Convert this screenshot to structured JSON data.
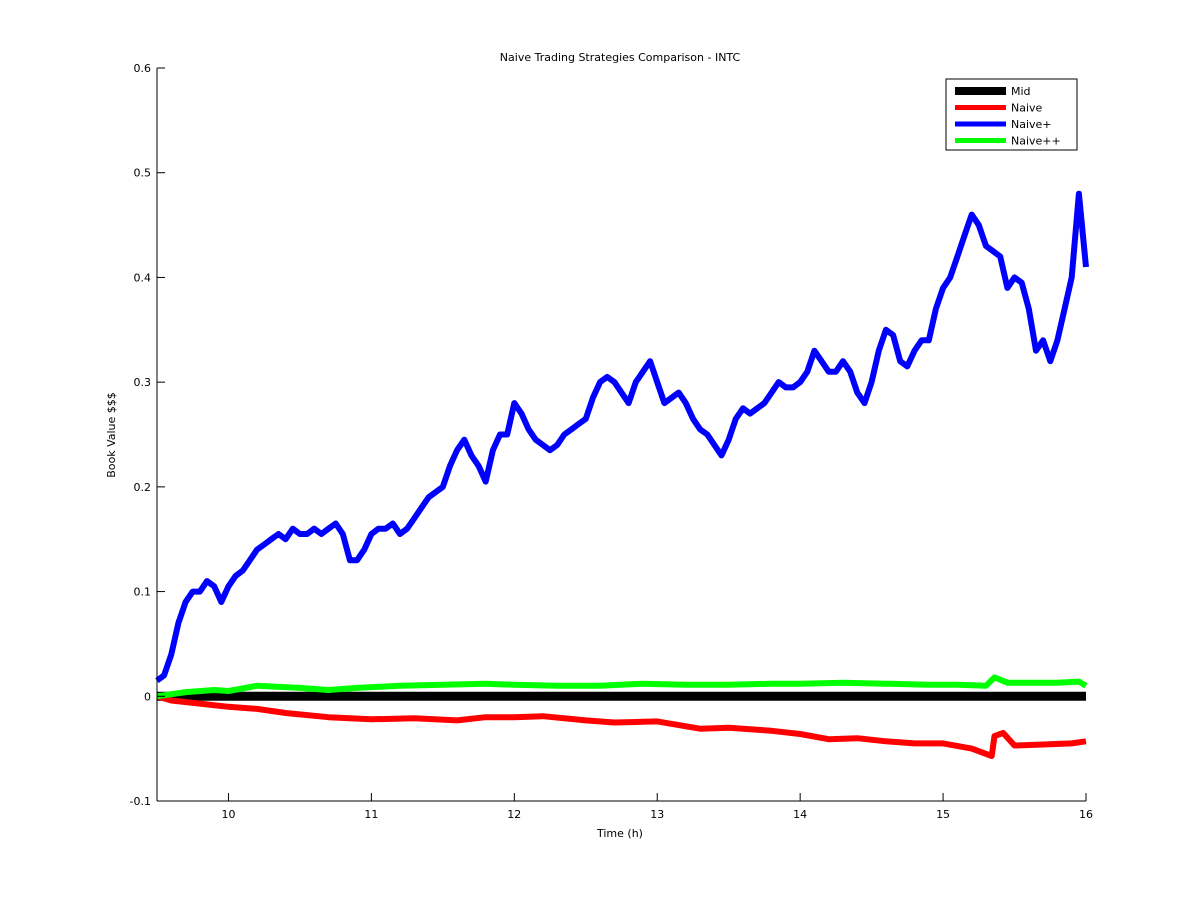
{
  "chart_data": {
    "type": "line",
    "title": "Naive Trading Strategies Comparison - INTC",
    "xlabel": "Time (h)",
    "ylabel": "Book Value $$$",
    "xlim": [
      9.5,
      16
    ],
    "ylim": [
      -0.1,
      0.6
    ],
    "xticks": [
      10,
      11,
      12,
      13,
      14,
      15,
      16
    ],
    "yticks": [
      -0.1,
      0,
      0.1,
      0.2,
      0.3,
      0.4,
      0.5,
      0.6
    ],
    "ytick_labels": [
      "-0.1",
      "0",
      "0.1",
      "0.2",
      "0.3",
      "0.4",
      "0.5",
      "0.6"
    ],
    "grid": false,
    "legend_position": "top-right",
    "series": [
      {
        "name": "Mid",
        "color": "#000000",
        "x": [
          9.5,
          10.0,
          11.0,
          12.0,
          13.0,
          14.0,
          15.0,
          16.0
        ],
        "y": [
          0.0,
          0.0,
          0.0,
          0.0,
          0.0,
          0.0,
          0.0,
          0.0
        ]
      },
      {
        "name": "Naive",
        "color": "#ff0000",
        "x": [
          9.5,
          9.6,
          9.8,
          10.0,
          10.2,
          10.4,
          10.7,
          11.0,
          11.3,
          11.6,
          11.8,
          12.0,
          12.2,
          12.5,
          12.7,
          13.0,
          13.3,
          13.5,
          13.8,
          14.0,
          14.2,
          14.4,
          14.6,
          14.8,
          15.0,
          15.2,
          15.34,
          15.36,
          15.42,
          15.5,
          15.7,
          15.9,
          16.0
        ],
        "y": [
          0.0,
          -0.004,
          -0.007,
          -0.01,
          -0.012,
          -0.016,
          -0.02,
          -0.022,
          -0.021,
          -0.023,
          -0.02,
          -0.02,
          -0.019,
          -0.023,
          -0.025,
          -0.024,
          -0.031,
          -0.03,
          -0.033,
          -0.036,
          -0.041,
          -0.04,
          -0.043,
          -0.045,
          -0.045,
          -0.05,
          -0.057,
          -0.038,
          -0.035,
          -0.047,
          -0.046,
          -0.045,
          -0.043
        ]
      },
      {
        "name": "Naive+",
        "color": "#0000ff",
        "x": [
          9.5,
          9.55,
          9.6,
          9.65,
          9.7,
          9.75,
          9.8,
          9.85,
          9.9,
          9.95,
          10.0,
          10.05,
          10.1,
          10.15,
          10.2,
          10.25,
          10.3,
          10.35,
          10.4,
          10.45,
          10.5,
          10.55,
          10.6,
          10.65,
          10.7,
          10.75,
          10.8,
          10.85,
          10.9,
          10.95,
          11.0,
          11.05,
          11.1,
          11.15,
          11.2,
          11.25,
          11.3,
          11.35,
          11.4,
          11.45,
          11.5,
          11.55,
          11.6,
          11.65,
          11.7,
          11.75,
          11.8,
          11.85,
          11.9,
          11.95,
          12.0,
          12.05,
          12.1,
          12.15,
          12.2,
          12.25,
          12.3,
          12.35,
          12.4,
          12.45,
          12.5,
          12.55,
          12.6,
          12.65,
          12.7,
          12.75,
          12.8,
          12.85,
          12.9,
          12.95,
          13.0,
          13.05,
          13.1,
          13.15,
          13.2,
          13.25,
          13.3,
          13.35,
          13.4,
          13.45,
          13.5,
          13.55,
          13.6,
          13.65,
          13.7,
          13.75,
          13.8,
          13.85,
          13.9,
          13.95,
          14.0,
          14.05,
          14.1,
          14.15,
          14.2,
          14.25,
          14.3,
          14.35,
          14.4,
          14.45,
          14.5,
          14.55,
          14.6,
          14.65,
          14.7,
          14.75,
          14.8,
          14.85,
          14.9,
          14.95,
          15.0,
          15.05,
          15.1,
          15.15,
          15.2,
          15.25,
          15.3,
          15.35,
          15.4,
          15.45,
          15.5,
          15.55,
          15.6,
          15.65,
          15.7,
          15.75,
          15.8,
          15.85,
          15.9,
          15.95,
          16.0
        ],
        "y": [
          0.015,
          0.02,
          0.04,
          0.07,
          0.09,
          0.1,
          0.1,
          0.11,
          0.105,
          0.09,
          0.105,
          0.115,
          0.12,
          0.13,
          0.14,
          0.145,
          0.15,
          0.155,
          0.15,
          0.16,
          0.155,
          0.155,
          0.16,
          0.155,
          0.16,
          0.165,
          0.155,
          0.13,
          0.13,
          0.14,
          0.155,
          0.16,
          0.16,
          0.165,
          0.155,
          0.16,
          0.17,
          0.18,
          0.19,
          0.195,
          0.2,
          0.22,
          0.235,
          0.245,
          0.23,
          0.22,
          0.205,
          0.235,
          0.25,
          0.25,
          0.28,
          0.27,
          0.255,
          0.245,
          0.24,
          0.235,
          0.24,
          0.25,
          0.255,
          0.26,
          0.265,
          0.285,
          0.3,
          0.305,
          0.3,
          0.29,
          0.28,
          0.3,
          0.31,
          0.32,
          0.3,
          0.28,
          0.285,
          0.29,
          0.28,
          0.265,
          0.255,
          0.25,
          0.24,
          0.23,
          0.245,
          0.265,
          0.275,
          0.27,
          0.275,
          0.28,
          0.29,
          0.3,
          0.295,
          0.295,
          0.3,
          0.31,
          0.33,
          0.32,
          0.31,
          0.31,
          0.32,
          0.31,
          0.29,
          0.28,
          0.3,
          0.33,
          0.35,
          0.345,
          0.32,
          0.315,
          0.33,
          0.34,
          0.34,
          0.37,
          0.39,
          0.4,
          0.42,
          0.44,
          0.46,
          0.45,
          0.43,
          0.425,
          0.42,
          0.39,
          0.4,
          0.395,
          0.37,
          0.33,
          0.34,
          0.32,
          0.34,
          0.37,
          0.4,
          0.48,
          0.41
        ]
      },
      {
        "name": "Naive++",
        "color": "#00ff00",
        "x": [
          9.5,
          9.7,
          9.9,
          10.0,
          10.2,
          10.5,
          10.7,
          10.9,
          11.2,
          11.5,
          11.8,
          12.0,
          12.3,
          12.6,
          12.9,
          13.2,
          13.5,
          13.8,
          14.0,
          14.3,
          14.6,
          14.9,
          15.1,
          15.3,
          15.36,
          15.45,
          15.6,
          15.8,
          15.95,
          16.0
        ],
        "y": [
          0.0,
          0.004,
          0.006,
          0.005,
          0.01,
          0.008,
          0.006,
          0.008,
          0.01,
          0.011,
          0.012,
          0.011,
          0.01,
          0.01,
          0.012,
          0.011,
          0.011,
          0.012,
          0.012,
          0.013,
          0.012,
          0.011,
          0.011,
          0.01,
          0.018,
          0.013,
          0.013,
          0.013,
          0.014,
          0.01
        ]
      }
    ]
  }
}
